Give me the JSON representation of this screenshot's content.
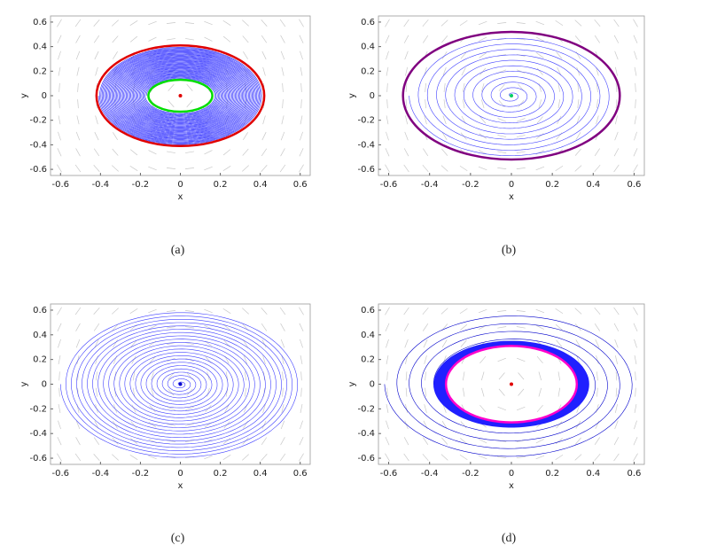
{
  "chart_data": [
    {
      "type": "phase",
      "caption": "(a)",
      "x_label": "x",
      "y_label": "y",
      "xlim": [
        -0.65,
        0.65
      ],
      "ylim": [
        -0.65,
        0.65
      ],
      "xticks": [
        -0.6,
        -0.4,
        -0.2,
        0,
        0.2,
        0.4,
        0.6
      ],
      "yticks": [
        -0.6,
        -0.4,
        -0.2,
        0,
        0.2,
        0.4,
        0.6
      ],
      "spirals": [
        {
          "from": [
            0.41,
            0.4
          ],
          "to": [
            0.17,
            0.14
          ],
          "color": "#2b2bff"
        }
      ],
      "cycles": [
        {
          "rx": 0.42,
          "ry": 0.41,
          "color": "#e00000"
        },
        {
          "rx": 0.16,
          "ry": 0.13,
          "color": "#00dd00"
        }
      ],
      "equilibrium": {
        "x": 0,
        "y": 0,
        "color": "#e00000"
      }
    },
    {
      "type": "phase",
      "caption": "(b)",
      "x_label": "x",
      "y_label": "y",
      "xlim": [
        -0.65,
        0.65
      ],
      "ylim": [
        -0.65,
        0.65
      ],
      "xticks": [
        -0.6,
        -0.4,
        -0.2,
        0,
        0.2,
        0.4,
        0.6
      ],
      "yticks": [
        -0.6,
        -0.4,
        -0.2,
        0,
        0.2,
        0.4,
        0.6
      ],
      "spirals": [
        {
          "from": [
            0.5,
            0.5
          ],
          "to": [
            0.01,
            0.01
          ],
          "color": "#4040ff"
        }
      ],
      "cycles": [
        {
          "rx": 0.53,
          "ry": 0.52,
          "color": "#800080"
        }
      ],
      "equilibrium": {
        "x": 0,
        "y": 0,
        "color": "#00cc66"
      }
    },
    {
      "type": "phase",
      "caption": "(c)",
      "x_label": "x",
      "y_label": "y",
      "xlim": [
        -0.65,
        0.65
      ],
      "ylim": [
        -0.65,
        0.65
      ],
      "xticks": [
        -0.6,
        -0.4,
        -0.2,
        0,
        0.2,
        0.4,
        0.6
      ],
      "yticks": [
        -0.6,
        -0.4,
        -0.2,
        0,
        0.2,
        0.4,
        0.6
      ],
      "spirals": [
        {
          "from": [
            0.6,
            0.6
          ],
          "to": [
            0.01,
            0.01
          ],
          "color": "#4040ff"
        }
      ],
      "cycles": [],
      "equilibrium": {
        "x": 0,
        "y": 0,
        "color": "#0000cc"
      }
    },
    {
      "type": "phase",
      "caption": "(d)",
      "x_label": "x",
      "y_label": "y",
      "xlim": [
        -0.65,
        0.65
      ],
      "ylim": [
        -0.65,
        0.65
      ],
      "xticks": [
        -0.6,
        -0.4,
        -0.2,
        0,
        0.2,
        0.4,
        0.6
      ],
      "yticks": [
        -0.6,
        -0.4,
        -0.2,
        0,
        0.2,
        0.4,
        0.6
      ],
      "spirals": [
        {
          "from": [
            0.62,
            0.6
          ],
          "to": [
            0.38,
            0.35
          ],
          "color": "#0000cc"
        },
        {
          "from": [
            0.38,
            0.35
          ],
          "to": [
            0.32,
            0.31
          ],
          "color": "#2020ff"
        }
      ],
      "cycles": [
        {
          "rx": 0.32,
          "ry": 0.31,
          "color": "#ff00cc"
        }
      ],
      "equilibrium": {
        "x": 0,
        "y": 0,
        "color": "#e00000"
      }
    }
  ]
}
